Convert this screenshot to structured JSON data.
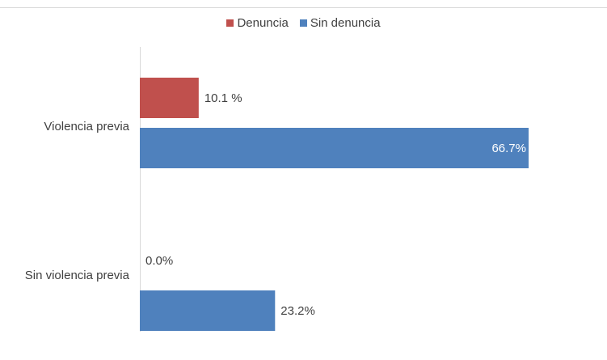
{
  "chart_data": {
    "type": "bar",
    "orientation": "horizontal",
    "categories": [
      "Violencia previa",
      "Sin violencia previa"
    ],
    "series": [
      {
        "name": "Denuncia",
        "values": [
          10.1,
          0.0
        ],
        "labels": [
          "10.1 %",
          "0.0%"
        ],
        "color": "#c0504d"
      },
      {
        "name": "Sin denuncia",
        "values": [
          66.7,
          23.2
        ],
        "labels": [
          "66.7%",
          "23.2%"
        ],
        "color": "#4f81bd"
      }
    ],
    "xlim": [
      0,
      66.7
    ],
    "legend_position": "top",
    "grid": false,
    "title": "",
    "xlabel": "",
    "ylabel": ""
  }
}
